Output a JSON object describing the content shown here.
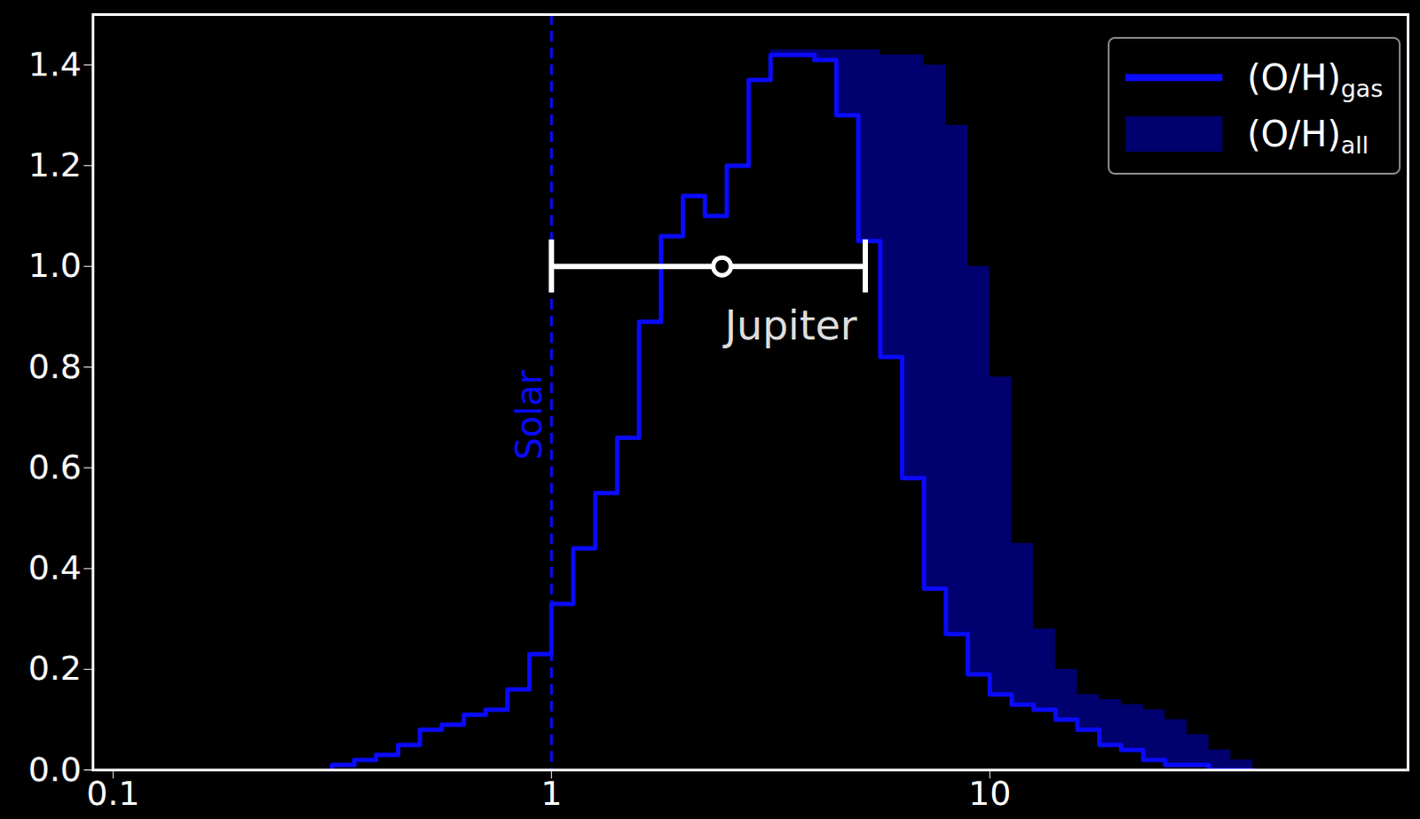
{
  "chart_data": {
    "type": "histogram",
    "log": "x",
    "grid": false,
    "legend": "upper right",
    "xlim": [
      0.09,
      90
    ],
    "xticks": [
      0.1,
      1,
      10
    ],
    "ylim": [
      0,
      1.5
    ],
    "yticks": [
      {
        "value": 0,
        "label": "0.0"
      },
      0.2,
      0.4,
      0.6,
      0.8,
      {
        "value": 1,
        "label": "1.0"
      },
      1.2,
      1.4
    ],
    "bins": [
      0.316,
      0.355,
      0.398,
      0.447,
      0.501,
      0.562,
      0.631,
      0.708,
      0.794,
      0.891,
      1.0,
      1.122,
      1.259,
      1.413,
      1.585,
      1.778,
      1.995,
      2.239,
      2.512,
      2.818,
      3.162,
      3.548,
      3.981,
      4.467,
      5.012,
      5.623,
      6.31,
      7.079,
      7.943,
      8.913,
      10.0,
      11.22,
      12.59,
      14.13,
      15.85,
      17.78,
      19.95,
      22.39,
      25.12,
      28.18,
      31.62,
      35.48,
      39.81
    ],
    "series": [
      {
        "name": "(O/H)gas",
        "type": "line",
        "color": "#0a0aff",
        "values": [
          0.01,
          0.02,
          0.03,
          0.05,
          0.08,
          0.09,
          0.11,
          0.12,
          0.16,
          0.23,
          0.33,
          0.44,
          0.55,
          0.66,
          0.89,
          1.06,
          1.14,
          1.1,
          1.2,
          1.37,
          1.42,
          1.42,
          1.41,
          1.3,
          1.05,
          0.82,
          0.58,
          0.36,
          0.27,
          0.19,
          0.15,
          0.13,
          0.12,
          0.1,
          0.08,
          0.05,
          0.04,
          0.02,
          0.01,
          0.01,
          0.0,
          0.0
        ]
      },
      {
        "name": "(O/H)all",
        "type": "area",
        "color": "#00006e",
        "values": [
          0.01,
          0.02,
          0.03,
          0.05,
          0.08,
          0.09,
          0.11,
          0.12,
          0.16,
          0.23,
          0.33,
          0.44,
          0.55,
          0.66,
          0.89,
          1.06,
          1.14,
          1.1,
          1.2,
          1.37,
          1.43,
          1.43,
          1.43,
          1.43,
          1.43,
          1.42,
          1.42,
          1.4,
          1.28,
          1.0,
          0.78,
          0.45,
          0.28,
          0.2,
          0.15,
          0.14,
          0.13,
          0.12,
          0.1,
          0.07,
          0.04,
          0.02
        ]
      }
    ],
    "annotations": [
      {
        "text": "Solar",
        "x": 1,
        "color": "#0a0aff",
        "line_style": "dashed"
      }
    ],
    "points": [
      {
        "name": "Jupiter",
        "x": 2.45,
        "y": 1.0,
        "x_low": 1.0,
        "x_high": 5.2,
        "color": "#ffffff",
        "marker": "circle"
      }
    ]
  }
}
